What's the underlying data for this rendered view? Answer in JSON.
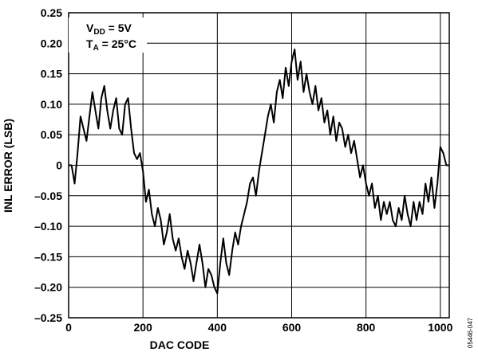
{
  "chart_data": {
    "type": "line",
    "title": "",
    "xlabel": "DAC CODE",
    "ylabel": "INL ERROR (LSB)",
    "xlim": [
      0,
      1024
    ],
    "ylim": [
      -0.25,
      0.25
    ],
    "x_ticks": [
      "0",
      "200",
      "400",
      "600",
      "800",
      "1000"
    ],
    "x_tick_values": [
      0,
      200,
      400,
      600,
      800,
      1000
    ],
    "y_ticks": [
      "0.25",
      "0.20",
      "0.15",
      "0.10",
      "0.05",
      "0",
      "–0.05",
      "–0.10",
      "–0.15",
      "–0.20",
      "–0.25"
    ],
    "y_tick_values": [
      0.25,
      0.2,
      0.15,
      0.1,
      0.05,
      0,
      -0.05,
      -0.1,
      -0.15,
      -0.2,
      -0.25
    ],
    "grid": true,
    "annotations": {
      "vdd_main": "V",
      "vdd_sub": "DD",
      "vdd_value": " = 5V",
      "ta_main": "T",
      "ta_sub": "A",
      "ta_value": " = 25°C"
    },
    "figure_id": "05446-047",
    "series": [
      {
        "color": "#000000",
        "x": [
          0,
          8,
          16,
          24,
          32,
          40,
          48,
          56,
          64,
          72,
          80,
          88,
          96,
          104,
          112,
          120,
          128,
          136,
          144,
          152,
          160,
          168,
          176,
          184,
          192,
          200,
          208,
          216,
          224,
          232,
          240,
          248,
          256,
          264,
          272,
          280,
          288,
          296,
          304,
          312,
          320,
          328,
          336,
          344,
          352,
          360,
          368,
          376,
          384,
          392,
          400,
          408,
          416,
          424,
          432,
          440,
          448,
          456,
          464,
          472,
          480,
          488,
          496,
          504,
          512,
          520,
          528,
          536,
          544,
          552,
          560,
          568,
          576,
          584,
          592,
          600,
          608,
          616,
          624,
          632,
          640,
          648,
          656,
          664,
          672,
          680,
          688,
          696,
          704,
          712,
          720,
          728,
          736,
          744,
          752,
          760,
          768,
          776,
          784,
          792,
          800,
          808,
          816,
          824,
          832,
          840,
          848,
          856,
          864,
          872,
          880,
          888,
          896,
          904,
          912,
          920,
          928,
          936,
          944,
          952,
          960,
          968,
          976,
          984,
          992,
          1000,
          1008,
          1016,
          1023
        ],
        "y": [
          0.0,
          0.0,
          -0.03,
          0.02,
          0.08,
          0.06,
          0.04,
          0.08,
          0.12,
          0.09,
          0.06,
          0.11,
          0.13,
          0.09,
          0.06,
          0.09,
          0.11,
          0.06,
          0.05,
          0.1,
          0.11,
          0.06,
          0.02,
          0.01,
          0.02,
          -0.01,
          -0.06,
          -0.04,
          -0.08,
          -0.1,
          -0.07,
          -0.09,
          -0.13,
          -0.11,
          -0.08,
          -0.12,
          -0.14,
          -0.12,
          -0.15,
          -0.17,
          -0.14,
          -0.16,
          -0.19,
          -0.16,
          -0.13,
          -0.16,
          -0.2,
          -0.17,
          -0.18,
          -0.2,
          -0.21,
          -0.16,
          -0.12,
          -0.16,
          -0.18,
          -0.14,
          -0.11,
          -0.13,
          -0.1,
          -0.08,
          -0.06,
          -0.03,
          -0.02,
          -0.05,
          -0.01,
          0.02,
          0.05,
          0.08,
          0.1,
          0.07,
          0.12,
          0.14,
          0.11,
          0.16,
          0.13,
          0.17,
          0.19,
          0.14,
          0.17,
          0.12,
          0.15,
          0.12,
          0.1,
          0.13,
          0.09,
          0.11,
          0.07,
          0.09,
          0.05,
          0.08,
          0.04,
          0.07,
          0.06,
          0.03,
          0.05,
          0.02,
          0.04,
          0.01,
          -0.02,
          0.0,
          -0.03,
          -0.05,
          -0.03,
          -0.07,
          -0.05,
          -0.09,
          -0.06,
          -0.08,
          -0.06,
          -0.09,
          -0.1,
          -0.07,
          -0.09,
          -0.05,
          -0.08,
          -0.1,
          -0.06,
          -0.09,
          -0.06,
          -0.08,
          -0.03,
          -0.06,
          -0.02,
          -0.07,
          -0.03,
          0.03,
          0.02,
          0.0,
          0.0
        ]
      }
    ]
  }
}
